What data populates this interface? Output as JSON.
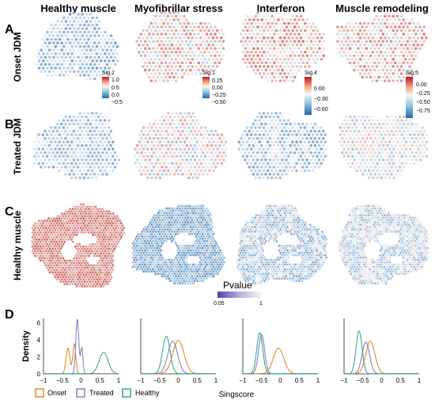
{
  "panels": {
    "A": "A",
    "B": "B",
    "C": "C",
    "D": "D"
  },
  "columns": [
    "Healthy muscle",
    "Myofibrillar stress",
    "Interferon",
    "Muscle remodeling"
  ],
  "rows": [
    "Onset JDM",
    "Treated JDM",
    "Healthy muscle"
  ],
  "colorbars": [
    {
      "title": "Sig.2",
      "ticks": [
        "1.0",
        "0.5",
        "0.0",
        "−0.5"
      ]
    },
    {
      "title": "Sig.1",
      "ticks": [
        "0.25",
        "0.00",
        "−0.25",
        "−0.50"
      ]
    },
    {
      "title": "Sig.4",
      "ticks": [
        "0.00",
        "−0.30",
        "−0.60"
      ]
    },
    {
      "title": "Sig.5",
      "ticks": [
        "0.00",
        "−0.25",
        "−0.50",
        "−0.75"
      ]
    }
  ],
  "pvalue_legend": {
    "title": "Pvalue",
    "ticks": [
      "0.05",
      "1"
    ],
    "color_low": "#5b3ea8",
    "color_high": "#f4f2fa"
  },
  "colors": {
    "onset": "#e08a2c",
    "treated": "#8a7fc0",
    "healthy": "#3aa88e",
    "red": "#b2182b",
    "blue": "#2166ac"
  },
  "chart_data": [
    {
      "type": "line",
      "title": "Healthy muscle",
      "xlabel": "Singscore",
      "ylabel": "Density",
      "xlim": [
        -1,
        1
      ],
      "ylim": [
        0,
        6.5
      ],
      "xticks": [
        "−1",
        "−0.5",
        "0",
        "0.5",
        "1"
      ],
      "yticks": [
        "0",
        "2",
        "4",
        "6"
      ],
      "series": [
        {
          "name": "Onset",
          "peaks": [
            [
              -0.35,
              0.05,
              3.0
            ],
            [
              -0.18,
              0.04,
              3.5
            ]
          ]
        },
        {
          "name": "Treated",
          "peaks": [
            [
              -0.1,
              0.04,
              6.4
            ],
            [
              0.02,
              0.03,
              3.0
            ]
          ]
        },
        {
          "name": "Healthy",
          "peaks": [
            [
              0.6,
              0.12,
              2.5
            ]
          ]
        }
      ]
    },
    {
      "type": "line",
      "title": "Myofibrillar stress",
      "xlabel": "Singscore",
      "ylabel": "Density",
      "xlim": [
        -1,
        1
      ],
      "ylim": [
        0,
        6.5
      ],
      "xticks": [
        "−1",
        "−0.5",
        "0",
        "0.5",
        "1"
      ],
      "series": [
        {
          "name": "Onset",
          "peaks": [
            [
              0.0,
              0.15,
              3.9
            ]
          ]
        },
        {
          "name": "Treated",
          "peaks": [
            [
              -0.15,
              0.13,
              3.8
            ]
          ]
        },
        {
          "name": "Healthy",
          "peaks": [
            [
              -0.32,
              0.1,
              4.4
            ]
          ]
        }
      ]
    },
    {
      "type": "line",
      "title": "Interferon",
      "xlabel": "Singscore",
      "ylabel": "Density",
      "xlim": [
        -1,
        1
      ],
      "ylim": [
        0,
        6.5
      ],
      "xticks": [
        "−1",
        "−0.5",
        "0",
        "0.5",
        "1"
      ],
      "series": [
        {
          "name": "Onset",
          "peaks": [
            [
              -0.05,
              0.14,
              3.0
            ]
          ]
        },
        {
          "name": "Treated",
          "peaks": [
            [
              -0.5,
              0.08,
              4.6
            ]
          ]
        },
        {
          "name": "Healthy",
          "peaks": [
            [
              -0.55,
              0.08,
              4.8
            ]
          ]
        }
      ]
    },
    {
      "type": "line",
      "title": "Muscle remodeling",
      "xlabel": "Singscore",
      "ylabel": "Density",
      "xlim": [
        -1,
        1
      ],
      "ylim": [
        0,
        6.5
      ],
      "xticks": [
        "−1",
        "−0.5",
        "0",
        "0.5",
        "1"
      ],
      "series": [
        {
          "name": "Onset",
          "peaks": [
            [
              -0.3,
              0.12,
              3.8
            ]
          ]
        },
        {
          "name": "Treated",
          "peaks": [
            [
              -0.42,
              0.1,
              3.7
            ]
          ]
        },
        {
          "name": "Healthy",
          "peaks": [
            [
              -0.6,
              0.08,
              5.0
            ]
          ]
        }
      ]
    }
  ],
  "legend": {
    "items": [
      "Onset",
      "Treated",
      "Healthy"
    ],
    "xlabel": "Singscore",
    "ylabel": "Density"
  }
}
